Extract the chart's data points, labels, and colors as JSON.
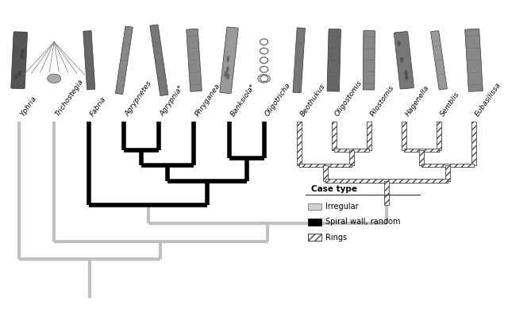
{
  "taxa": [
    "Yphria",
    "Trichostegia",
    "Fabria",
    "Agrypnetes",
    "Agrypnia*",
    "Phryganea",
    "Banksiola*",
    "Oligotricha",
    "Beothukus",
    "Oligostomis",
    "Pilostomis",
    "Hagenella",
    "Semblis",
    "Eubasilissa"
  ],
  "background_color": "#f0f0f0",
  "gray_color": "#c0c0c0",
  "black_color": "#000000",
  "hatch_color": "#666666",
  "lw_gray": 3.0,
  "lw_black": 4.0,
  "legend_title": "Case type",
  "legend_items": [
    "Irregular",
    "Spiral wall, random",
    "Rings"
  ],
  "fig_width": 6.4,
  "fig_height": 4.09,
  "dpi": 100
}
